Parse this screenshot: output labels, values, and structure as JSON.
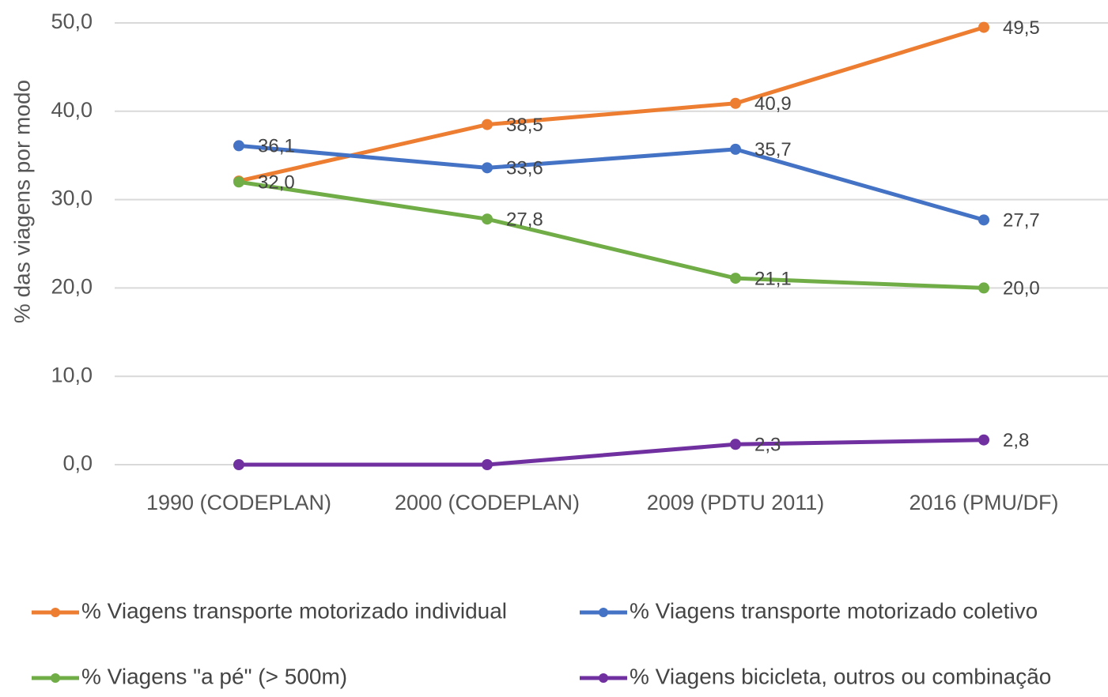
{
  "chart_data": {
    "type": "line",
    "y_label": "% das viagens por modo",
    "categories": [
      "1990 (CODEPLAN)",
      "2000 (CODEPLAN)",
      "2009 (PDTU 2011)",
      "2016 (PMU/DF)"
    ],
    "series": [
      {
        "name": "% Viagens transporte motorizado individual",
        "color": "#ed7d31",
        "values": [
          32.1,
          38.5,
          40.9,
          49.5
        ],
        "value_labels": [
          null,
          "38,5",
          "40,9",
          "49,5"
        ]
      },
      {
        "name": "% Viagens transporte motorizado coletivo",
        "color": "#4472c4",
        "values": [
          36.1,
          33.6,
          35.7,
          27.7
        ],
        "value_labels": [
          "36,1",
          "33,6",
          "35,7",
          "27,7"
        ]
      },
      {
        "name": "% Viagens \"a pé\" (> 500m)",
        "color": "#70ad47",
        "values": [
          32.0,
          27.8,
          21.1,
          20.0
        ],
        "value_labels": [
          "32,0",
          "27,8",
          "21,1",
          "20,0"
        ]
      },
      {
        "name": "% Viagens bicicleta, outros ou combinação",
        "color": "#7030a0",
        "values": [
          0,
          0,
          2.3,
          2.8
        ],
        "value_labels": [
          null,
          null,
          "2,3",
          "2,8"
        ]
      }
    ],
    "ylim": [
      0,
      50
    ],
    "yticks": [
      {
        "value": 0,
        "label": "0,0"
      },
      {
        "value": 10,
        "label": "10,0"
      },
      {
        "value": 20,
        "label": "20,0"
      },
      {
        "value": 30,
        "label": "30,0"
      },
      {
        "value": 40,
        "label": "40,0"
      },
      {
        "value": 50,
        "label": "50,0"
      }
    ],
    "grid": true,
    "legend": "bottom"
  }
}
